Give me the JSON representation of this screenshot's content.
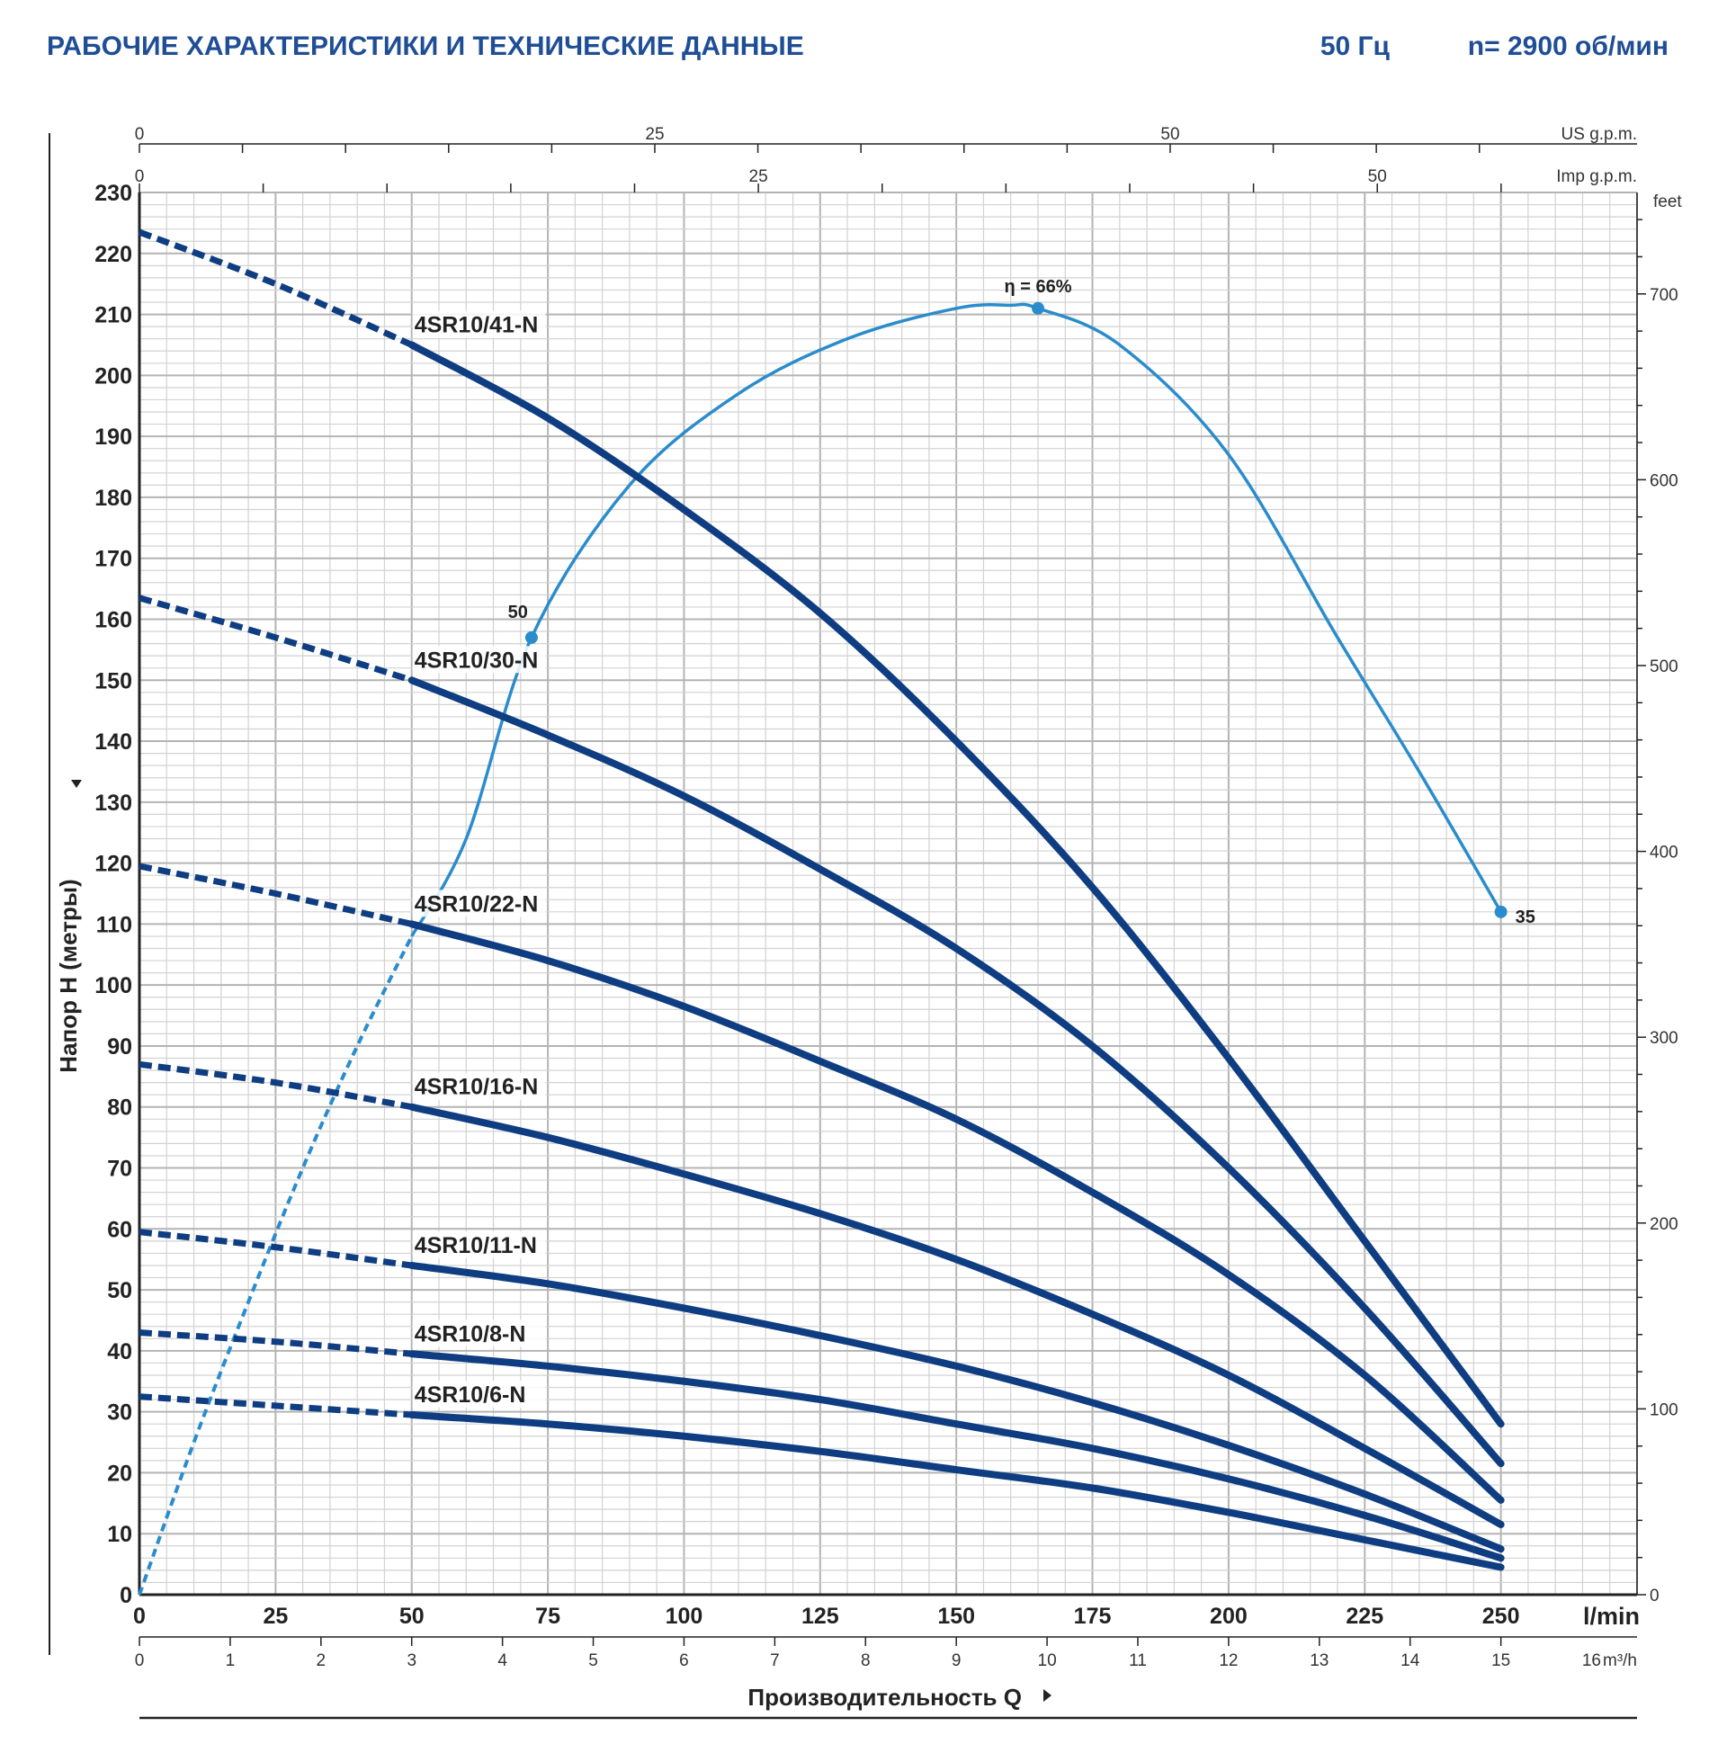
{
  "header": {
    "title": "РАБОЧИЕ ХАРАКТЕРИСТИКИ И ТЕХНИЧЕСКИЕ ДАННЫЕ",
    "frequency": "50 Гц",
    "speed": "n= 2900 об/мин"
  },
  "colors": {
    "brand": "#1f4e96",
    "pump_curve": "#0f3d82",
    "efficiency_curve": "#2a8ccc",
    "grid_major": "#b4b4b4",
    "grid_minor": "#d2d2d2"
  },
  "chart_data": {
    "type": "line",
    "xlabel": "Производительность Q",
    "ylabel": "Напор H (метры)",
    "x_unit": "l/min",
    "y_unit": "feet",
    "xlim": [
      0,
      275
    ],
    "ylim": [
      0,
      230
    ],
    "grid": true,
    "x_ticks": [
      0,
      25,
      50,
      75,
      100,
      125,
      150,
      175,
      200,
      225,
      250
    ],
    "y_ticks": [
      0,
      10,
      20,
      30,
      40,
      50,
      60,
      70,
      80,
      90,
      100,
      110,
      120,
      130,
      140,
      150,
      160,
      170,
      180,
      190,
      200,
      210,
      220,
      230
    ],
    "feet_axis": {
      "unit": "feet",
      "ticks": [
        0,
        100,
        200,
        300,
        400,
        500,
        600,
        700
      ]
    },
    "m3h_axis": {
      "unit": "m³/h",
      "ticks": [
        "0",
        "1",
        "2",
        "3",
        "4",
        "5",
        "6",
        "7",
        "8",
        "9",
        "10",
        "11",
        "12",
        "13",
        "14",
        "15",
        "16"
      ]
    },
    "us_gpm_axis": {
      "unit": "US g.p.m.",
      "labels": [
        "0",
        "25",
        "50"
      ]
    },
    "imp_gpm_axis": {
      "unit": "Imp g.p.m.",
      "labels": [
        "0",
        "25",
        "50"
      ]
    },
    "series": [
      {
        "name": "4SR10/41-N",
        "x": [
          0,
          25,
          50,
          75,
          100,
          125,
          150,
          175,
          200,
          225,
          250
        ],
        "y": [
          223.5,
          215,
          205,
          193,
          178,
          161,
          140,
          116,
          88,
          58,
          28
        ]
      },
      {
        "name": "4SR10/30-N",
        "x": [
          0,
          25,
          50,
          75,
          100,
          125,
          150,
          175,
          200,
          225,
          250
        ],
        "y": [
          163.5,
          157,
          150,
          141,
          131,
          119,
          106,
          90,
          70,
          47,
          21.5
        ]
      },
      {
        "name": "4SR10/22-N",
        "x": [
          0,
          25,
          50,
          75,
          100,
          125,
          150,
          175,
          200,
          225,
          250
        ],
        "y": [
          119.5,
          115,
          110,
          104,
          96.5,
          87.5,
          78,
          66,
          52.5,
          36,
          15.5
        ]
      },
      {
        "name": "4SR10/16-N",
        "x": [
          0,
          25,
          50,
          75,
          100,
          125,
          150,
          175,
          200,
          225,
          250
        ],
        "y": [
          87,
          84,
          80,
          75,
          69,
          62.5,
          55,
          46,
          36,
          24,
          11.5
        ]
      },
      {
        "name": "4SR10/11-N",
        "x": [
          0,
          25,
          50,
          75,
          100,
          125,
          150,
          175,
          200,
          225,
          250
        ],
        "y": [
          59.5,
          57,
          54,
          51,
          47,
          42.5,
          37.5,
          31.5,
          24.5,
          16.5,
          7.5
        ]
      },
      {
        "name": "4SR10/8-N",
        "x": [
          0,
          25,
          50,
          75,
          100,
          125,
          150,
          175,
          200,
          225,
          250
        ],
        "y": [
          43,
          41.5,
          39.5,
          37.5,
          35,
          32,
          28,
          24,
          19,
          13,
          6
        ]
      },
      {
        "name": "4SR10/6-N",
        "x": [
          0,
          25,
          50,
          75,
          100,
          125,
          150,
          175,
          200,
          225,
          250
        ],
        "y": [
          32.5,
          31,
          29.5,
          28,
          26,
          23.5,
          20.5,
          17.5,
          13.5,
          9,
          4.5
        ]
      }
    ],
    "efficiency": {
      "x": [
        0,
        10,
        20,
        30,
        40,
        50,
        60,
        72,
        90,
        110,
        130,
        150,
        160,
        165,
        180,
        200,
        220,
        235,
        250
      ],
      "y": [
        0,
        25,
        48,
        70,
        90,
        108,
        124,
        157,
        182,
        197,
        206,
        211,
        211.5,
        211,
        205,
        187,
        157,
        135,
        112
      ],
      "points": [
        {
          "x": 72,
          "y": 157,
          "label": "50"
        },
        {
          "x": 165,
          "y": 211,
          "label": "η = 66%"
        },
        {
          "x": 250,
          "y": 112,
          "label": "35"
        }
      ]
    }
  }
}
